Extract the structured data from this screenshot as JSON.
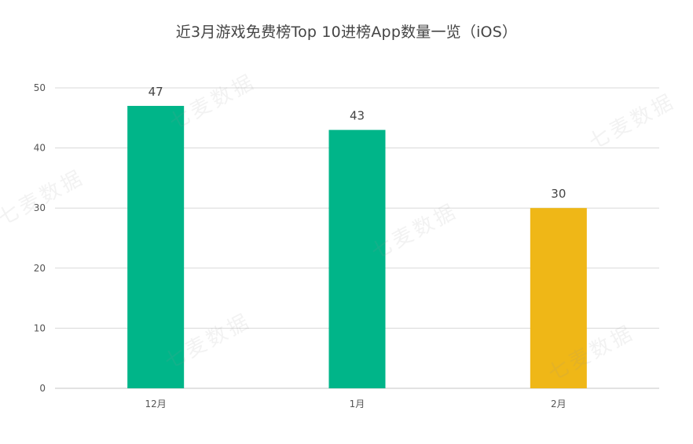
{
  "watermark": "七麦数据",
  "colors": {
    "bar_default": "#00b589",
    "bar_highlight": "#efb717",
    "grid": "#d9d9d9",
    "axis_text": "#555555",
    "label_text": "#444444"
  },
  "chart_data": {
    "type": "bar",
    "title": "近3月游戏免费榜Top 10进榜App数量一览（iOS）",
    "xlabel": "",
    "ylabel": "",
    "categories": [
      "12月",
      "1月",
      "2月"
    ],
    "values": [
      47,
      43,
      30
    ],
    "highlight_index": 2,
    "ylim": [
      0,
      50
    ],
    "yticks": [
      0,
      10,
      20,
      30,
      40,
      50
    ],
    "grid": true,
    "data_labels": true
  }
}
